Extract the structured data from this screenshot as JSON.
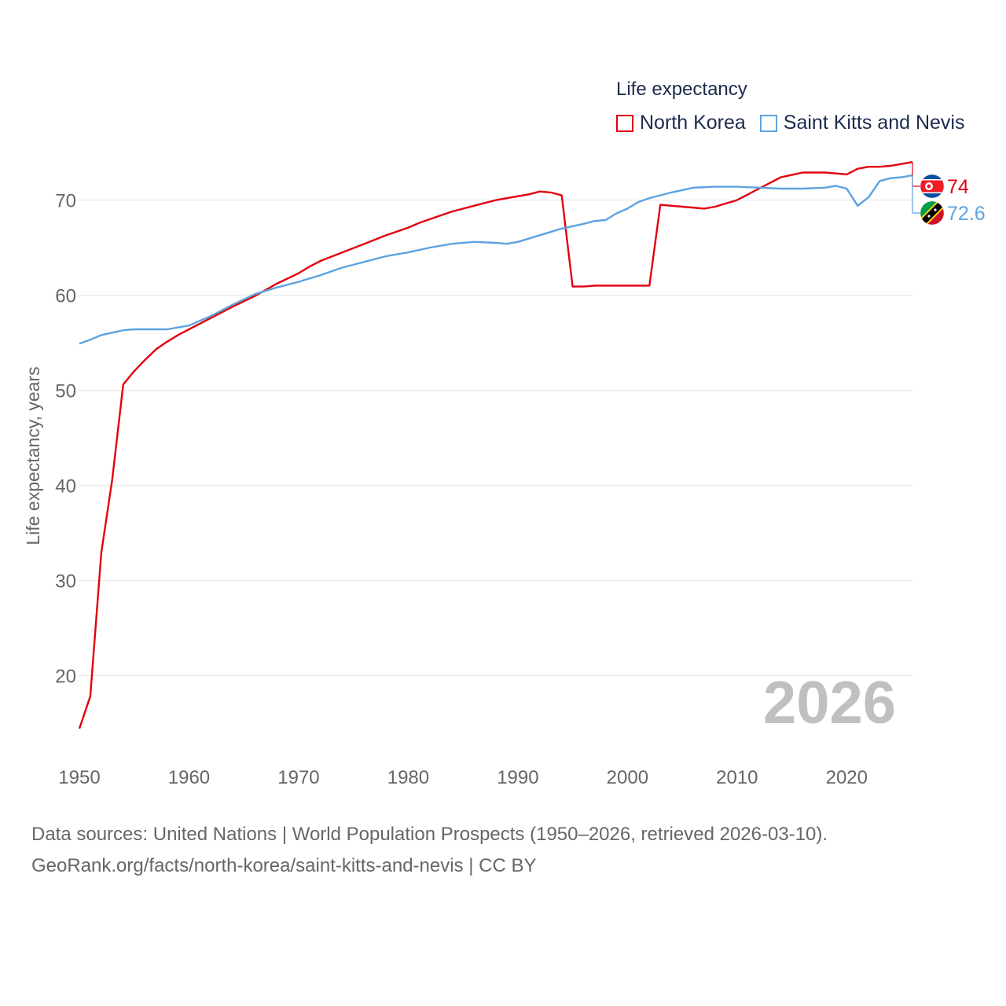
{
  "legend": {
    "title": "Life expectancy",
    "items": [
      {
        "name": "North Korea",
        "color": "#e3000f"
      },
      {
        "name": "Saint Kitts and Nevis",
        "color": "#5ca3e0"
      }
    ]
  },
  "footer": {
    "line1": "Data sources: United Nations | World Population Prospects (1950–2026, retrieved 2026-03-10).",
    "line2": "GeoRank.org/facts/north-korea/saint-kitts-and-nevis | CC BY"
  },
  "chart_data": {
    "type": "line",
    "ylabel": "Life expectancy, years",
    "xlabel": "",
    "xlim": [
      1950,
      2026
    ],
    "ylim": [
      12,
      76
    ],
    "x_ticks": [
      1950,
      1960,
      1970,
      1980,
      1990,
      2000,
      2010,
      2020
    ],
    "y_ticks": [
      20,
      30,
      40,
      50,
      60,
      70
    ],
    "watermark_year": "2026",
    "grid": true,
    "series": [
      {
        "name": "North Korea",
        "color": "#e3000f",
        "end_label": "74",
        "flag": "north-korea-flag",
        "points": [
          [
            1950,
            14.4
          ],
          [
            1951,
            17.8
          ],
          [
            1952,
            32.9
          ],
          [
            1953,
            40.6
          ],
          [
            1954,
            50.6
          ],
          [
            1955,
            52.0
          ],
          [
            1956,
            53.2
          ],
          [
            1957,
            54.3
          ],
          [
            1958,
            55.1
          ],
          [
            1959,
            55.8
          ],
          [
            1960,
            56.4
          ],
          [
            1962,
            57.6
          ],
          [
            1964,
            58.8
          ],
          [
            1966,
            59.9
          ],
          [
            1968,
            61.2
          ],
          [
            1970,
            62.3
          ],
          [
            1971,
            63.0
          ],
          [
            1972,
            63.6
          ],
          [
            1974,
            64.5
          ],
          [
            1976,
            65.4
          ],
          [
            1978,
            66.3
          ],
          [
            1980,
            67.1
          ],
          [
            1981,
            67.6
          ],
          [
            1982,
            68.0
          ],
          [
            1984,
            68.8
          ],
          [
            1986,
            69.4
          ],
          [
            1988,
            70.0
          ],
          [
            1990,
            70.4
          ],
          [
            1991,
            70.6
          ],
          [
            1992,
            70.9
          ],
          [
            1993,
            70.8
          ],
          [
            1994,
            70.5
          ],
          [
            1995,
            60.9
          ],
          [
            1996,
            60.9
          ],
          [
            1997,
            61.0
          ],
          [
            2002,
            61.0
          ],
          [
            2003,
            69.5
          ],
          [
            2005,
            69.3
          ],
          [
            2007,
            69.1
          ],
          [
            2008,
            69.3
          ],
          [
            2010,
            70.0
          ],
          [
            2011,
            70.6
          ],
          [
            2012,
            71.2
          ],
          [
            2014,
            72.4
          ],
          [
            2016,
            72.9
          ],
          [
            2018,
            72.9
          ],
          [
            2019,
            72.8
          ],
          [
            2020,
            72.7
          ],
          [
            2021,
            73.3
          ],
          [
            2022,
            73.5
          ],
          [
            2023,
            73.5
          ],
          [
            2024,
            73.6
          ],
          [
            2025,
            73.8
          ],
          [
            2026,
            74.0
          ]
        ]
      },
      {
        "name": "Saint Kitts and Nevis",
        "color": "#5ca3e0",
        "end_label": "72.6",
        "flag": "saint-kitts-and-nevis-flag",
        "points": [
          [
            1950,
            54.9
          ],
          [
            1951,
            55.3
          ],
          [
            1952,
            55.8
          ],
          [
            1954,
            56.3
          ],
          [
            1955,
            56.4
          ],
          [
            1958,
            56.4
          ],
          [
            1960,
            56.8
          ],
          [
            1962,
            57.8
          ],
          [
            1964,
            59.0
          ],
          [
            1966,
            60.1
          ],
          [
            1968,
            60.8
          ],
          [
            1970,
            61.4
          ],
          [
            1972,
            62.1
          ],
          [
            1974,
            62.9
          ],
          [
            1976,
            63.5
          ],
          [
            1978,
            64.1
          ],
          [
            1980,
            64.5
          ],
          [
            1982,
            65.0
          ],
          [
            1984,
            65.4
          ],
          [
            1986,
            65.6
          ],
          [
            1988,
            65.5
          ],
          [
            1989,
            65.4
          ],
          [
            1990,
            65.6
          ],
          [
            1992,
            66.3
          ],
          [
            1994,
            67.0
          ],
          [
            1996,
            67.5
          ],
          [
            1997,
            67.8
          ],
          [
            1998,
            67.9
          ],
          [
            1999,
            68.6
          ],
          [
            2000,
            69.1
          ],
          [
            2001,
            69.8
          ],
          [
            2002,
            70.2
          ],
          [
            2004,
            70.8
          ],
          [
            2006,
            71.3
          ],
          [
            2008,
            71.4
          ],
          [
            2010,
            71.4
          ],
          [
            2012,
            71.3
          ],
          [
            2014,
            71.2
          ],
          [
            2016,
            71.2
          ],
          [
            2018,
            71.3
          ],
          [
            2019,
            71.5
          ],
          [
            2020,
            71.2
          ],
          [
            2021,
            69.4
          ],
          [
            2022,
            70.3
          ],
          [
            2023,
            72.0
          ],
          [
            2024,
            72.3
          ],
          [
            2025,
            72.4
          ],
          [
            2026,
            72.6
          ]
        ]
      }
    ]
  }
}
